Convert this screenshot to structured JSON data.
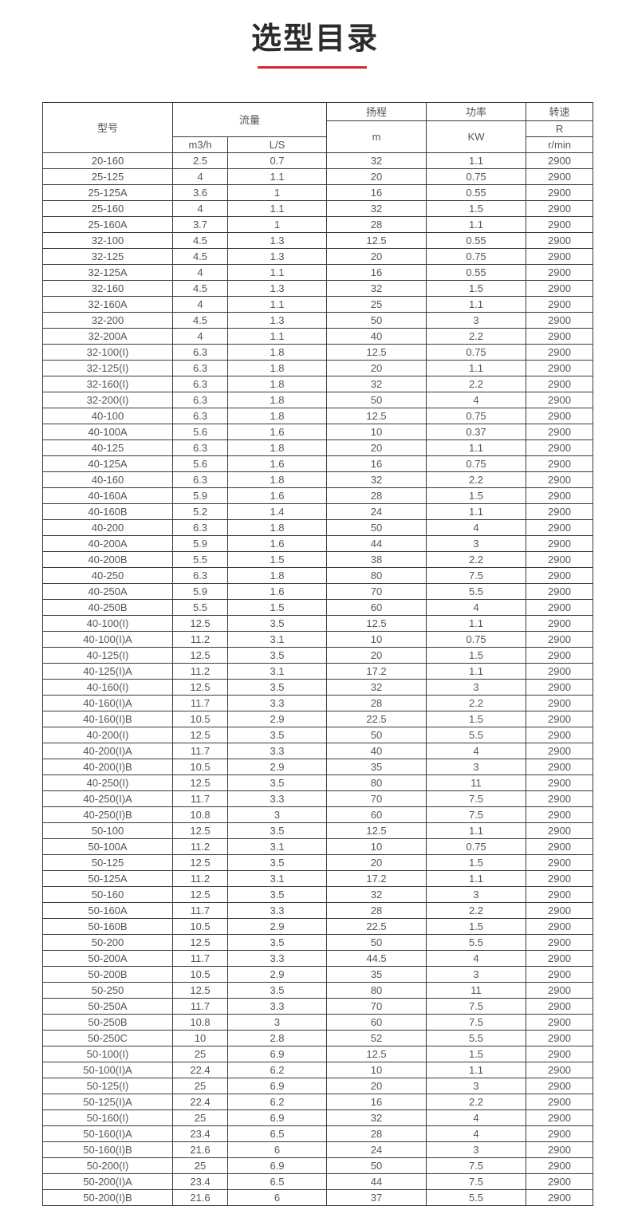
{
  "title": "选型目录",
  "accent_color": "#d8262c",
  "header": {
    "model": "型号",
    "flow": "流量",
    "flow_m3h": "m3/h",
    "flow_ls": "L/S",
    "head": "扬程",
    "head_unit": "m",
    "power": "功率",
    "power_unit": "KW",
    "speed": "转速",
    "speed_r": "R",
    "speed_unit": "r/min"
  },
  "rows": [
    [
      "20-160",
      "2.5",
      "0.7",
      "32",
      "1.1",
      "2900"
    ],
    [
      "25-125",
      "4",
      "1.1",
      "20",
      "0.75",
      "2900"
    ],
    [
      "25-125A",
      "3.6",
      "1",
      "16",
      "0.55",
      "2900"
    ],
    [
      "25-160",
      "4",
      "1.1",
      "32",
      "1.5",
      "2900"
    ],
    [
      "25-160A",
      "3.7",
      "1",
      "28",
      "1.1",
      "2900"
    ],
    [
      "32-100",
      "4.5",
      "1.3",
      "12.5",
      "0.55",
      "2900"
    ],
    [
      "32-125",
      "4.5",
      "1.3",
      "20",
      "0.75",
      "2900"
    ],
    [
      "32-125A",
      "4",
      "1.1",
      "16",
      "0.55",
      "2900"
    ],
    [
      "32-160",
      "4.5",
      "1.3",
      "32",
      "1.5",
      "2900"
    ],
    [
      "32-160A",
      "4",
      "1.1",
      "25",
      "1.1",
      "2900"
    ],
    [
      "32-200",
      "4.5",
      "1.3",
      "50",
      "3",
      "2900"
    ],
    [
      "32-200A",
      "4",
      "1.1",
      "40",
      "2.2",
      "2900"
    ],
    [
      "32-100(I)",
      "6.3",
      "1.8",
      "12.5",
      "0.75",
      "2900"
    ],
    [
      "32-125(I)",
      "6.3",
      "1.8",
      "20",
      "1.1",
      "2900"
    ],
    [
      "32-160(I)",
      "6.3",
      "1.8",
      "32",
      "2.2",
      "2900"
    ],
    [
      "32-200(I)",
      "6.3",
      "1.8",
      "50",
      "4",
      "2900"
    ],
    [
      "40-100",
      "6.3",
      "1.8",
      "12.5",
      "0.75",
      "2900"
    ],
    [
      "40-100A",
      "5.6",
      "1.6",
      "10",
      "0.37",
      "2900"
    ],
    [
      "40-125",
      "6.3",
      "1.8",
      "20",
      "1.1",
      "2900"
    ],
    [
      "40-125A",
      "5.6",
      "1.6",
      "16",
      "0.75",
      "2900"
    ],
    [
      "40-160",
      "6.3",
      "1.8",
      "32",
      "2.2",
      "2900"
    ],
    [
      "40-160A",
      "5.9",
      "1.6",
      "28",
      "1.5",
      "2900"
    ],
    [
      "40-160B",
      "5.2",
      "1.4",
      "24",
      "1.1",
      "2900"
    ],
    [
      "40-200",
      "6.3",
      "1.8",
      "50",
      "4",
      "2900"
    ],
    [
      "40-200A",
      "5.9",
      "1.6",
      "44",
      "3",
      "2900"
    ],
    [
      "40-200B",
      "5.5",
      "1.5",
      "38",
      "2.2",
      "2900"
    ],
    [
      "40-250",
      "6.3",
      "1.8",
      "80",
      "7.5",
      "2900"
    ],
    [
      "40-250A",
      "5.9",
      "1.6",
      "70",
      "5.5",
      "2900"
    ],
    [
      "40-250B",
      "5.5",
      "1.5",
      "60",
      "4",
      "2900"
    ],
    [
      "40-100(I)",
      "12.5",
      "3.5",
      "12.5",
      "1.1",
      "2900"
    ],
    [
      "40-100(I)A",
      "11.2",
      "3.1",
      "10",
      "0.75",
      "2900"
    ],
    [
      "40-125(I)",
      "12.5",
      "3.5",
      "20",
      "1.5",
      "2900"
    ],
    [
      "40-125(I)A",
      "11.2",
      "3.1",
      "17.2",
      "1.1",
      "2900"
    ],
    [
      "40-160(I)",
      "12.5",
      "3.5",
      "32",
      "3",
      "2900"
    ],
    [
      "40-160(I)A",
      "11.7",
      "3.3",
      "28",
      "2.2",
      "2900"
    ],
    [
      "40-160(I)B",
      "10.5",
      "2.9",
      "22.5",
      "1.5",
      "2900"
    ],
    [
      "40-200(I)",
      "12.5",
      "3.5",
      "50",
      "5.5",
      "2900"
    ],
    [
      "40-200(I)A",
      "11.7",
      "3.3",
      "40",
      "4",
      "2900"
    ],
    [
      "40-200(I)B",
      "10.5",
      "2.9",
      "35",
      "3",
      "2900"
    ],
    [
      "40-250(I)",
      "12.5",
      "3.5",
      "80",
      "11",
      "2900"
    ],
    [
      "40-250(I)A",
      "11.7",
      "3.3",
      "70",
      "7.5",
      "2900"
    ],
    [
      "40-250(I)B",
      "10.8",
      "3",
      "60",
      "7.5",
      "2900"
    ],
    [
      "50-100",
      "12.5",
      "3.5",
      "12.5",
      "1.1",
      "2900"
    ],
    [
      "50-100A",
      "11.2",
      "3.1",
      "10",
      "0.75",
      "2900"
    ],
    [
      "50-125",
      "12.5",
      "3.5",
      "20",
      "1.5",
      "2900"
    ],
    [
      "50-125A",
      "11.2",
      "3.1",
      "17.2",
      "1.1",
      "2900"
    ],
    [
      "50-160",
      "12.5",
      "3.5",
      "32",
      "3",
      "2900"
    ],
    [
      "50-160A",
      "11.7",
      "3.3",
      "28",
      "2.2",
      "2900"
    ],
    [
      "50-160B",
      "10.5",
      "2.9",
      "22.5",
      "1.5",
      "2900"
    ],
    [
      "50-200",
      "12.5",
      "3.5",
      "50",
      "5.5",
      "2900"
    ],
    [
      "50-200A",
      "11.7",
      "3.3",
      "44.5",
      "4",
      "2900"
    ],
    [
      "50-200B",
      "10.5",
      "2.9",
      "35",
      "3",
      "2900"
    ],
    [
      "50-250",
      "12.5",
      "3.5",
      "80",
      "11",
      "2900"
    ],
    [
      "50-250A",
      "11.7",
      "3.3",
      "70",
      "7.5",
      "2900"
    ],
    [
      "50-250B",
      "10.8",
      "3",
      "60",
      "7.5",
      "2900"
    ],
    [
      "50-250C",
      "10",
      "2.8",
      "52",
      "5.5",
      "2900"
    ],
    [
      "50-100(I)",
      "25",
      "6.9",
      "12.5",
      "1.5",
      "2900"
    ],
    [
      "50-100(I)A",
      "22.4",
      "6.2",
      "10",
      "1.1",
      "2900"
    ],
    [
      "50-125(I)",
      "25",
      "6.9",
      "20",
      "3",
      "2900"
    ],
    [
      "50-125(I)A",
      "22.4",
      "6.2",
      "16",
      "2.2",
      "2900"
    ],
    [
      "50-160(I)",
      "25",
      "6.9",
      "32",
      "4",
      "2900"
    ],
    [
      "50-160(I)A",
      "23.4",
      "6.5",
      "28",
      "4",
      "2900"
    ],
    [
      "50-160(I)B",
      "21.6",
      "6",
      "24",
      "3",
      "2900"
    ],
    [
      "50-200(I)",
      "25",
      "6.9",
      "50",
      "7.5",
      "2900"
    ],
    [
      "50-200(I)A",
      "23.4",
      "6.5",
      "44",
      "7.5",
      "2900"
    ],
    [
      "50-200(I)B",
      "21.6",
      "6",
      "37",
      "5.5",
      "2900"
    ]
  ]
}
